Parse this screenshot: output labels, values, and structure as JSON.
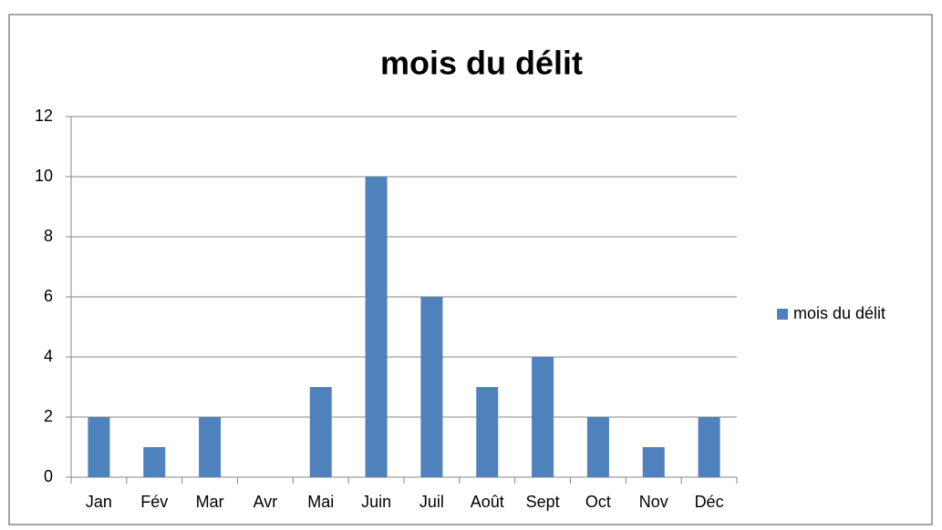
{
  "chart_data": {
    "type": "bar",
    "title": "mois du délit",
    "categories": [
      "Jan",
      "Fév",
      "Mar",
      "Avr",
      "Mai",
      "Juin",
      "Juil",
      "Août",
      "Sept",
      "Oct",
      "Nov",
      "Déc"
    ],
    "series": [
      {
        "name": "mois du délit",
        "color": "#4f81bd",
        "values": [
          2,
          1,
          2,
          0,
          3,
          10,
          6,
          3,
          4,
          2,
          1,
          2
        ]
      }
    ],
    "ylim": [
      0,
      12
    ],
    "yticks": [
      0,
      2,
      4,
      6,
      8,
      10,
      12
    ],
    "grid": true,
    "legend": "right"
  }
}
